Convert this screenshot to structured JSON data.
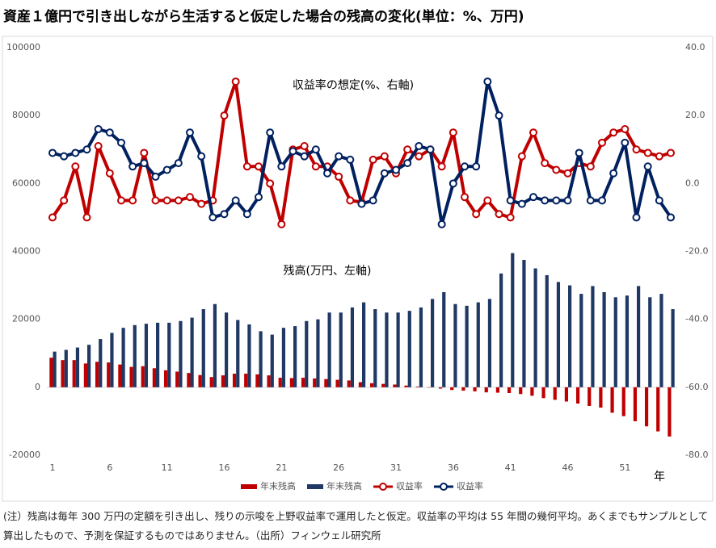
{
  "chart_data": {
    "type": "bar",
    "title": "資産１億円で引き出しながら生活すると仮定した場合の残高の変化(単位：%、万円)",
    "annotations": [
      "収益率の想定(%、右軸)",
      "残高(万円、左軸)"
    ],
    "x_label": "年",
    "note": "(注）残高は毎年 300 万円の定額を引き出し、残りの示唆を上野収益率で運用したと仮定。収益率の平均は 55 年間の幾何平均。あくまでもサンプルとして算出したもので、予測を保証するものではありません。（出所）フィンウェル研究所",
    "categories": [
      1,
      null,
      null,
      null,
      null,
      6,
      null,
      null,
      null,
      null,
      11,
      null,
      null,
      null,
      null,
      16,
      null,
      null,
      null,
      null,
      21,
      null,
      null,
      null,
      null,
      26,
      null,
      null,
      null,
      null,
      31,
      null,
      null,
      null,
      null,
      36,
      null,
      null,
      null,
      null,
      41,
      null,
      null,
      null,
      null,
      46,
      null,
      null,
      null,
      null,
      51,
      null,
      null,
      null,
      null
    ],
    "ylim": [
      -20000,
      100000
    ],
    "yticks": [
      -20000,
      0,
      20000,
      40000,
      60000,
      80000,
      100000
    ],
    "y2lim": [
      -80,
      40
    ],
    "y2ticks": [
      {
        "value": -80,
        "label": "-80.0"
      },
      {
        "value": -60,
        "label": "-60.0"
      },
      {
        "value": -40,
        "label": "-40.0"
      },
      {
        "value": -20,
        "label": "-20.0"
      },
      {
        "value": 0,
        "label": "0.0"
      },
      {
        "value": 20,
        "label": "20.0"
      },
      {
        "value": 40,
        "label": "40.0"
      }
    ],
    "grid": false,
    "legend": "bottom",
    "series": [
      {
        "name": "年末残高",
        "type": "bar",
        "color": "#c00000",
        "values": [
          8700,
          8000,
          8000,
          7000,
          7500,
          7300,
          6700,
          6000,
          6200,
          5600,
          5000,
          4600,
          4200,
          3600,
          3000,
          3500,
          4000,
          4000,
          3800,
          3500,
          2800,
          2700,
          2800,
          2600,
          2400,
          2200,
          2000,
          1500,
          1200,
          1000,
          800,
          500,
          200,
          -100,
          -400,
          -800,
          -1000,
          -1200,
          -1500,
          -1600,
          -1700,
          -2000,
          -2500,
          -3200,
          -3700,
          -4200,
          -4800,
          -5500,
          -6000,
          -7500,
          -8500,
          -10000,
          -11500,
          -13000,
          -14500
        ]
      },
      {
        "name": "年末残高",
        "type": "bar",
        "color": "#203864",
        "values": [
          10500,
          11000,
          11700,
          12500,
          14200,
          16000,
          17500,
          18300,
          18700,
          19000,
          19000,
          19500,
          20500,
          23000,
          24500,
          22000,
          19800,
          18500,
          16500,
          15500,
          17500,
          18000,
          19500,
          20000,
          22000,
          22000,
          23500,
          25000,
          23000,
          22000,
          22000,
          22500,
          23500,
          26000,
          28000,
          24500,
          24000,
          25000,
          26000,
          33500,
          39500,
          37500,
          35000,
          33000,
          31000,
          30000,
          27500,
          29800,
          28000,
          26500,
          27000,
          29800,
          26500,
          27500,
          23000
        ]
      },
      {
        "name": "収益率",
        "type": "line",
        "axis": "y2",
        "color": "#c00000",
        "values": [
          -10,
          -5,
          5,
          -10,
          11,
          3,
          -5,
          -5,
          9,
          -5,
          -5,
          -5,
          -4,
          -6,
          -5,
          20,
          30,
          5,
          5,
          0,
          -12,
          10,
          11,
          5,
          5,
          2,
          -5,
          -5.5,
          7,
          8,
          3,
          10,
          8,
          10,
          5,
          15,
          -4,
          -9,
          -5,
          -9,
          -10,
          8,
          15,
          6,
          4,
          3,
          6,
          5,
          12,
          15,
          16,
          10,
          9,
          8,
          9
        ]
      },
      {
        "name": "収益率",
        "type": "line",
        "axis": "y2",
        "color": "#002060",
        "values": [
          9,
          8,
          9,
          10,
          16,
          15,
          12,
          5,
          6,
          2,
          4,
          6,
          15,
          8,
          -10,
          -9,
          -5,
          -9,
          -4,
          15,
          5,
          9.5,
          8,
          10,
          3,
          8,
          7,
          -6,
          -5,
          3,
          4,
          6,
          11,
          10,
          -12,
          0,
          5,
          5,
          30,
          20,
          -5,
          -6,
          -4,
          -5,
          -5,
          -5,
          9,
          -5,
          -5,
          3,
          12,
          -10,
          5,
          -5,
          -10
        ]
      }
    ]
  }
}
